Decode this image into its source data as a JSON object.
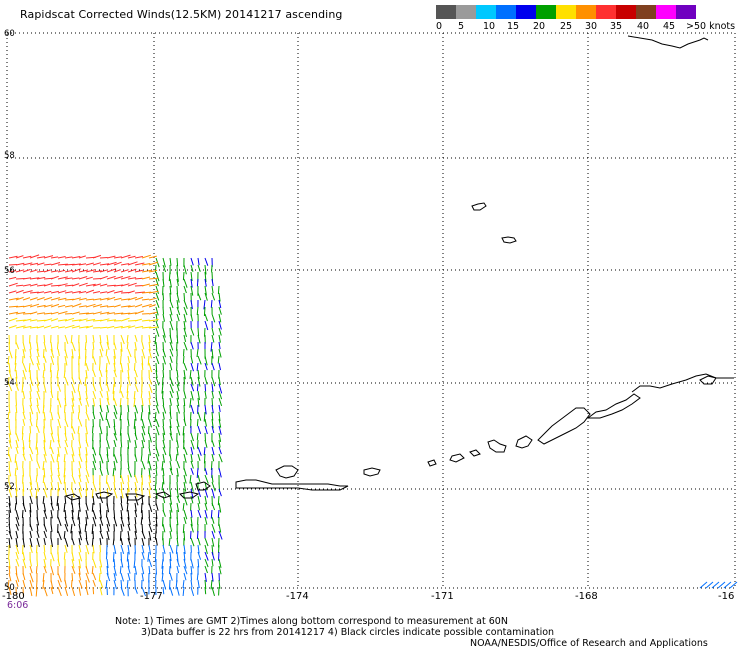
{
  "title": "Rapidscat Corrected Winds(12.5KM) 20141217 ascending",
  "legend": {
    "colors": [
      "#555555",
      "#9a9a9a",
      "#00c8ff",
      "#0070ff",
      "#0000ee",
      "#00a000",
      "#ffe000",
      "#ff9000",
      "#ff3030",
      "#c80000",
      "#804020",
      "#ff00ff",
      "#7000c0"
    ],
    "labels": [
      "0",
      "5",
      "10",
      "15",
      "20",
      "25",
      "30",
      "35",
      "40",
      "45",
      ">50 knots"
    ]
  },
  "map": {
    "lat_labels": [
      "60",
      "58",
      "56",
      "54",
      "52",
      "50"
    ],
    "lon_labels": [
      "-180",
      "-177",
      "-174",
      "-171",
      "-168",
      "-16"
    ]
  },
  "time_label": "6:06",
  "notes": {
    "line1": "Note: 1) Times are GMT 2)Times along bottom correspond to measurement at 60N",
    "line2": "3)Data buffer is 22 hrs from 20141217 4) Black circles indicate possible contamination",
    "line3": "NOAA/NESDIS/Office of Research and Applications"
  }
}
